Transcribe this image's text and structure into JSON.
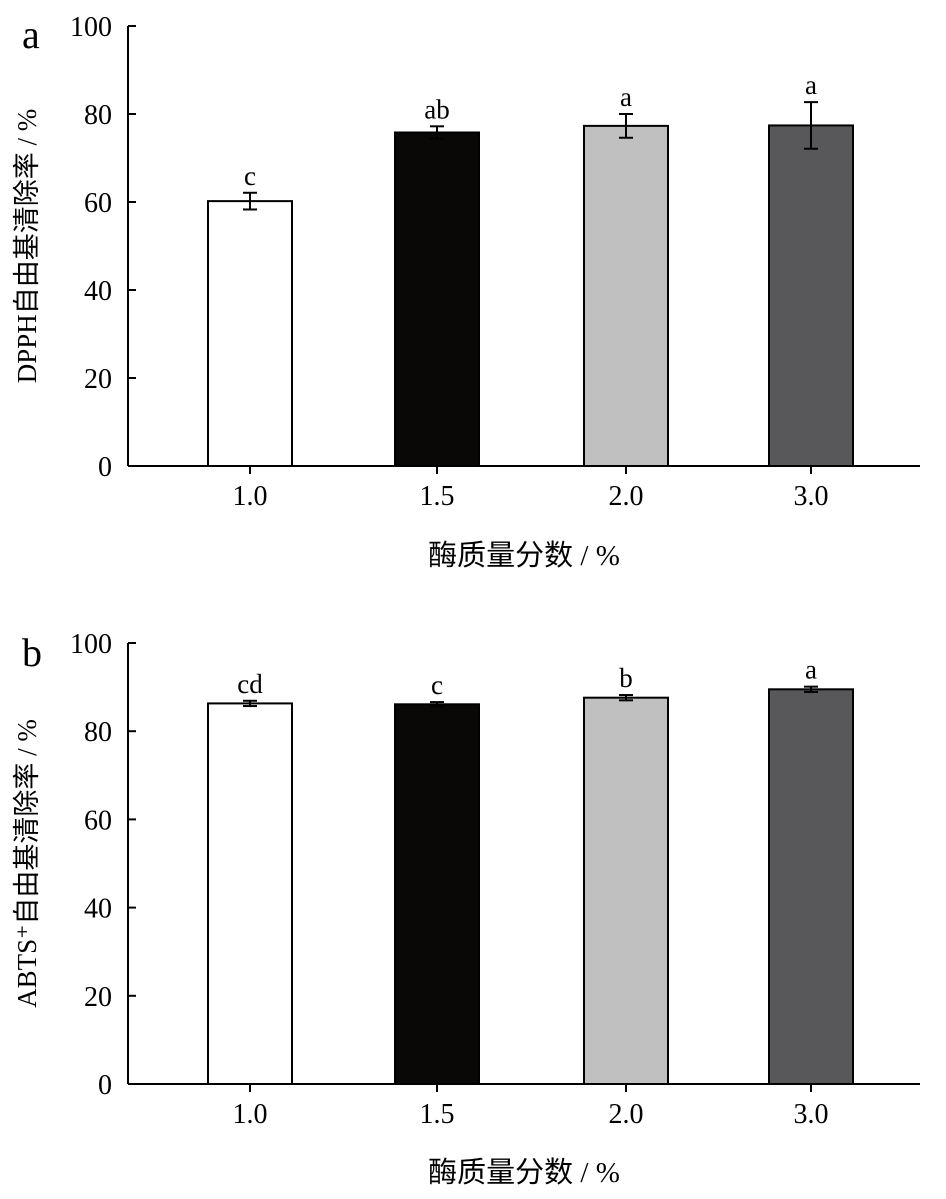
{
  "chart_data": [
    {
      "type": "bar",
      "panel_label": "a",
      "categories": [
        "1.0",
        "1.5",
        "2.0",
        "3.0"
      ],
      "values": [
        60.2,
        75.8,
        77.3,
        77.4
      ],
      "errors": [
        1.9,
        1.4,
        2.7,
        5.3
      ],
      "significance_labels": [
        "c",
        "ab",
        "a",
        "a"
      ],
      "bar_colors": [
        "#ffffff",
        "#0a0806",
        "#c0c0c0",
        "#58585a"
      ],
      "xlabel": "酶质量分数 / %",
      "ylabel": "DPPH自由基清除率 / %",
      "ylim": [
        0,
        100
      ],
      "yticks": [
        "0",
        "20",
        "40",
        "60",
        "80",
        "100"
      ],
      "grid": false
    },
    {
      "type": "bar",
      "panel_label": "b",
      "categories": [
        "1.0",
        "1.5",
        "2.0",
        "3.0"
      ],
      "values": [
        86.3,
        86.1,
        87.6,
        89.5
      ],
      "errors": [
        0.6,
        0.5,
        0.6,
        0.6
      ],
      "significance_labels": [
        "cd",
        "c",
        "b",
        "a"
      ],
      "bar_colors": [
        "#ffffff",
        "#0a0806",
        "#c0c0c0",
        "#58585a"
      ],
      "xlabel": "酶质量分数 / %",
      "ylabel": "ABTS⁺自由基清除率 / %",
      "ylim": [
        0,
        100
      ],
      "yticks": [
        "0",
        "20",
        "40",
        "60",
        "80",
        "100"
      ],
      "grid": false
    }
  ]
}
